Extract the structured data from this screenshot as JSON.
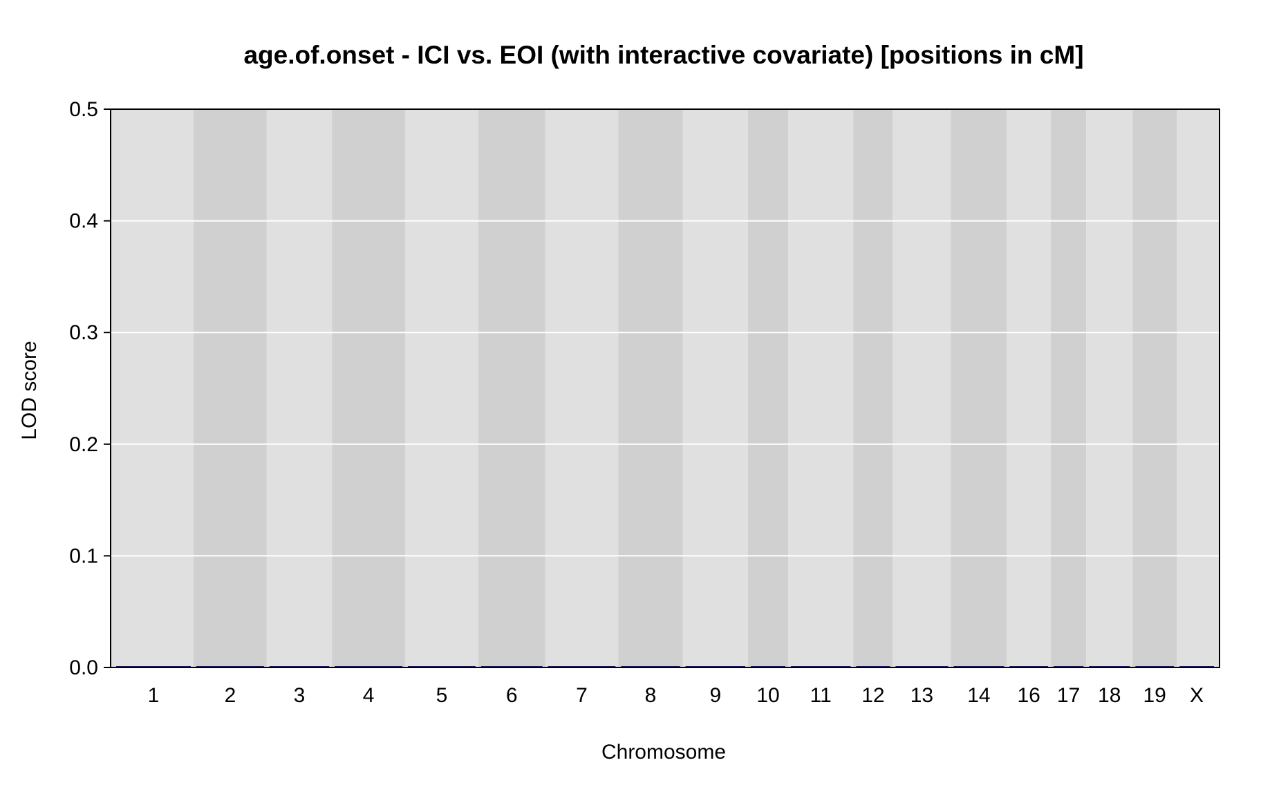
{
  "chart_data": {
    "type": "line",
    "title": "age.of.onset - ICI vs. EOI (with interactive covariate) [positions in cM]",
    "xlabel": "Chromosome",
    "ylabel": "LOD score",
    "ylim": [
      0,
      0.5
    ],
    "yticks": [
      "0.0",
      "0.1",
      "0.2",
      "0.3",
      "0.4",
      "0.5"
    ],
    "grid": true,
    "background_colors": {
      "light": "#e0e0e0",
      "dark": "#d0d0d0",
      "grid": "#ffffff",
      "line": "#1a1a5e"
    },
    "chromosomes": [
      {
        "label": "1",
        "length_cM": 95.0
      },
      {
        "label": "2",
        "length_cM": 86.0
      },
      {
        "label": "3",
        "length_cM": 76.0
      },
      {
        "label": "4",
        "length_cM": 86.0
      },
      {
        "label": "5",
        "length_cM": 86.0
      },
      {
        "label": "6",
        "length_cM": 78.0
      },
      {
        "label": "7",
        "length_cM": 86.0
      },
      {
        "label": "8",
        "length_cM": 75.0
      },
      {
        "label": "9",
        "length_cM": 76.0
      },
      {
        "label": "10",
        "length_cM": 44.0
      },
      {
        "label": "11",
        "length_cM": 76.0
      },
      {
        "label": "12",
        "length_cM": 43.0
      },
      {
        "label": "13",
        "length_cM": 67.0
      },
      {
        "label": "14",
        "length_cM": 64.0
      },
      {
        "label": "16",
        "length_cM": 49.0
      },
      {
        "label": "17",
        "length_cM": 38.0
      },
      {
        "label": "18",
        "length_cM": 52.0
      },
      {
        "label": "19",
        "length_cM": 49.0
      },
      {
        "label": "X",
        "length_cM": 44.0
      }
    ],
    "series": [
      {
        "lod": 0.0
      }
    ]
  }
}
